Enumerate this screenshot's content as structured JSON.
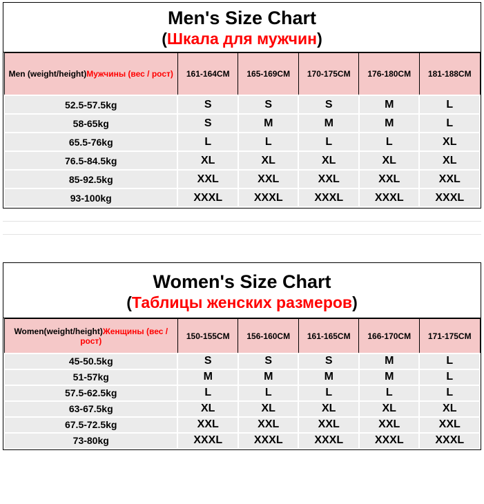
{
  "colors": {
    "accent_red": "#ff0000",
    "header_bg": "#f5c8c8",
    "row_bg": "#ebebeb",
    "border": "#000000",
    "page_bg": "#ffffff"
  },
  "men": {
    "title": "Men's Size Chart",
    "subtitle_open": "(",
    "subtitle": "Шкала для мужчин",
    "subtitle_close": ")",
    "header": {
      "label_en": "Men (weight/height)",
      "label_ru": "Мужчины (вес / рост)",
      "cols": [
        "161-164CM",
        "165-169CM",
        "170-175CM",
        "176-180CM",
        "181-188CM"
      ]
    },
    "rows": [
      {
        "label": "52.5-57.5kg",
        "values": [
          "S",
          "S",
          "S",
          "M",
          "L"
        ]
      },
      {
        "label": "58-65kg",
        "values": [
          "S",
          "M",
          "M",
          "M",
          "L"
        ]
      },
      {
        "label": "65.5-76kg",
        "values": [
          "L",
          "L",
          "L",
          "L",
          "XL"
        ]
      },
      {
        "label": "76.5-84.5kg",
        "values": [
          "XL",
          "XL",
          "XL",
          "XL",
          "XL"
        ]
      },
      {
        "label": "85-92.5kg",
        "values": [
          "XXL",
          "XXL",
          "XXL",
          "XXL",
          "XXL"
        ]
      },
      {
        "label": "93-100kg",
        "values": [
          "XXXL",
          "XXXL",
          "XXXL",
          "XXXL",
          "XXXL"
        ]
      }
    ]
  },
  "women": {
    "title": "Women's Size Chart",
    "subtitle_open": "(",
    "subtitle": "Таблицы женских размеров",
    "subtitle_close": ")",
    "header": {
      "label_en": "Women(weight/height)",
      "label_ru": "Женщины (вес / рост)",
      "cols": [
        "150-155CM",
        "156-160CM",
        "161-165CM",
        "166-170CM",
        "171-175CM"
      ]
    },
    "rows": [
      {
        "label": "45-50.5kg",
        "values": [
          "S",
          "S",
          "S",
          "M",
          "L"
        ]
      },
      {
        "label": "51-57kg",
        "values": [
          "M",
          "M",
          "M",
          "M",
          "L"
        ]
      },
      {
        "label": "57.5-62.5kg",
        "values": [
          "L",
          "L",
          "L",
          "L",
          "L"
        ]
      },
      {
        "label": "63-67.5kg",
        "values": [
          "XL",
          "XL",
          "XL",
          "XL",
          "XL"
        ]
      },
      {
        "label": "67.5-72.5kg",
        "values": [
          "XXL",
          "XXL",
          "XXL",
          "XXL",
          "XXL"
        ]
      },
      {
        "label": "73-80kg",
        "values": [
          "XXXL",
          "XXXL",
          "XXXL",
          "XXXL",
          "XXXL"
        ]
      }
    ]
  }
}
